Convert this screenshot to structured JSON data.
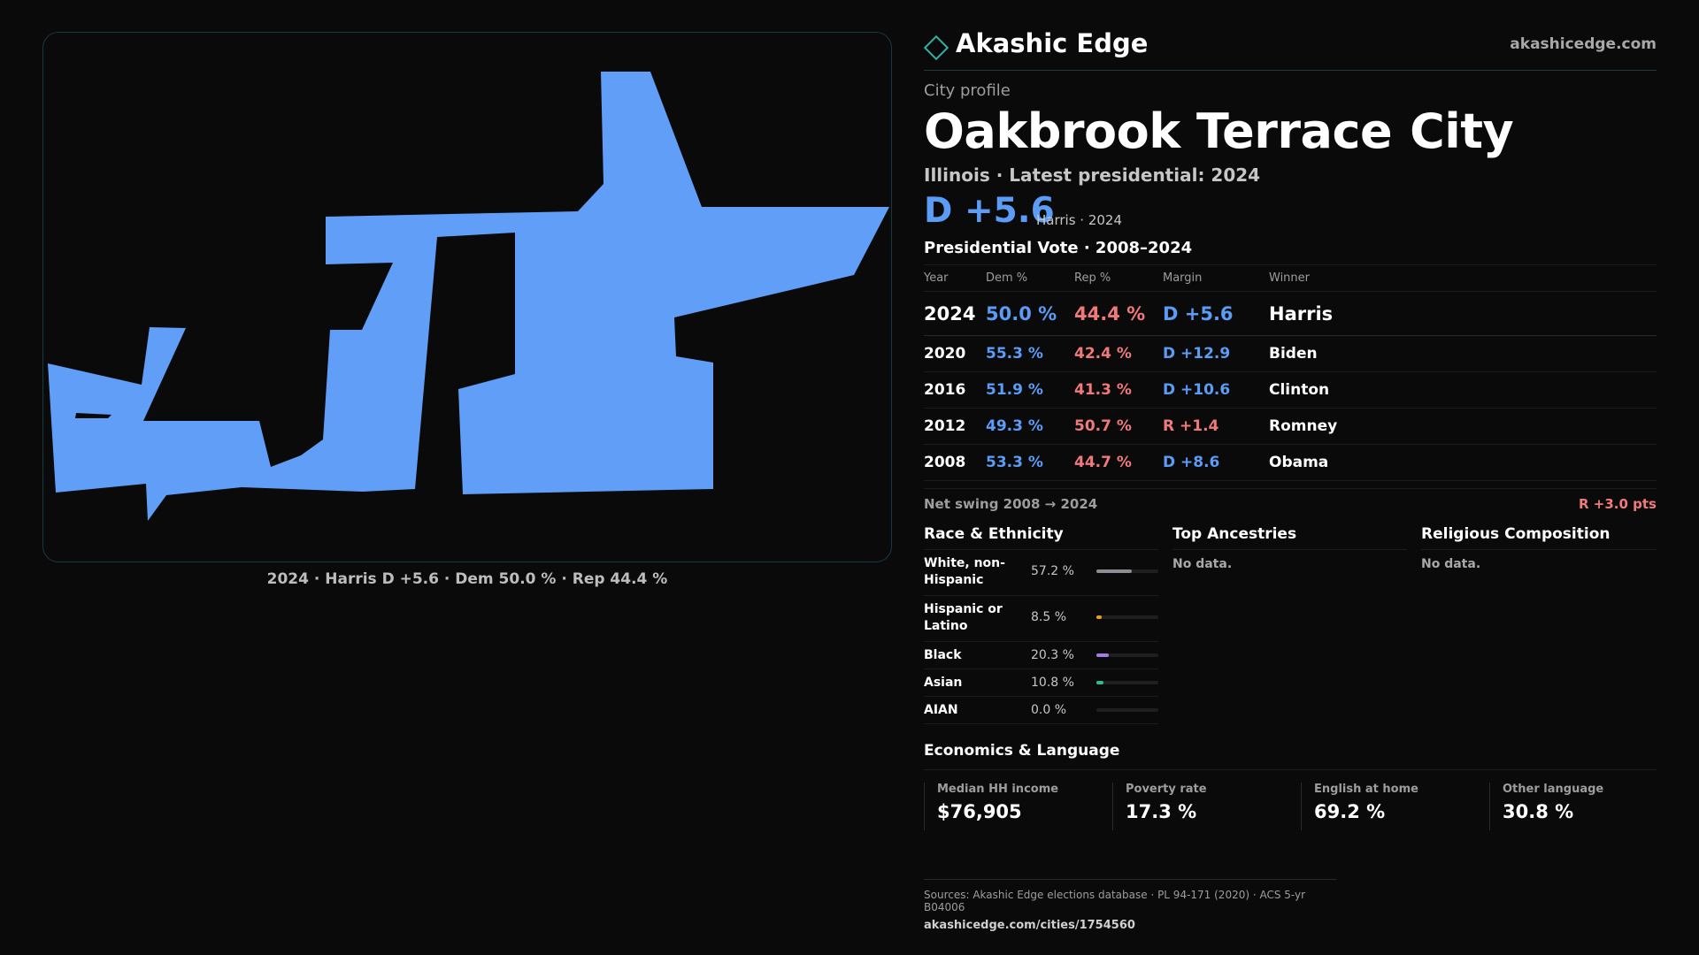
{
  "brand": {
    "name": "Akashic Edge",
    "url": "akashicedge.com"
  },
  "profile_label": "City profile",
  "city": {
    "name": "Oakbrook Terrace",
    "type": "City"
  },
  "subtitle": "Illinois · Latest presidential: 2024",
  "headline": {
    "margin": "D +5.6",
    "detail": "Harris · 2024"
  },
  "vote": {
    "title": "Presidential Vote · 2008–2024",
    "headers": {
      "year": "Year",
      "dem": "Dem %",
      "rep": "Rep %",
      "margin": "Margin",
      "winner": "Winner"
    },
    "rows": [
      {
        "year": "2024",
        "dem": "50.0 %",
        "rep": "44.4 %",
        "margin": "D +5.6",
        "winner": "Harris",
        "party": "dem"
      },
      {
        "year": "2020",
        "dem": "55.3 %",
        "rep": "42.4 %",
        "margin": "D +12.9",
        "winner": "Biden",
        "party": "dem"
      },
      {
        "year": "2016",
        "dem": "51.9 %",
        "rep": "41.3 %",
        "margin": "D +10.6",
        "winner": "Clinton",
        "party": "dem"
      },
      {
        "year": "2012",
        "dem": "49.3 %",
        "rep": "50.7 %",
        "margin": "R +1.4",
        "winner": "Romney",
        "party": "rep"
      },
      {
        "year": "2008",
        "dem": "53.3 %",
        "rep": "44.7 %",
        "margin": "D +8.6",
        "winner": "Obama",
        "party": "dem"
      }
    ]
  },
  "swing": {
    "label": "Net swing 2008 → 2024",
    "value": "R +3.0 pts"
  },
  "race": {
    "title": "Race & Ethnicity",
    "items": [
      {
        "name": "White, non-Hispanic",
        "value": "57.2 %",
        "fraction": 0.572,
        "color": "#8d8d93"
      },
      {
        "name": "Hispanic or Latino",
        "value": "8.5 %",
        "fraction": 0.085,
        "color": "#e3a21a"
      },
      {
        "name": "Black",
        "value": "20.3 %",
        "fraction": 0.203,
        "color": "#a47de8"
      },
      {
        "name": "Asian",
        "value": "10.8 %",
        "fraction": 0.108,
        "color": "#2fbf8f"
      },
      {
        "name": "AIAN",
        "value": "0.0 %",
        "fraction": 0.0,
        "color": "#8d8d93"
      }
    ]
  },
  "ancestries": {
    "title": "Top Ancestries",
    "empty": "No data."
  },
  "religion": {
    "title": "Religious Composition",
    "empty": "No data."
  },
  "economics": {
    "title": "Economics & Language",
    "cells": [
      {
        "label": "Median HH income",
        "value": "$76,905"
      },
      {
        "label": "Poverty rate",
        "value": "17.3 %"
      },
      {
        "label": "English at home",
        "value": "69.2 %"
      },
      {
        "label": "Other language",
        "value": "30.8 %"
      }
    ]
  },
  "map": {
    "caption": "2024 · Harris D +5.6 · Dem 50.0 % · Rep 44.4 %",
    "fill_color": "#619ef7"
  },
  "sources": {
    "line": "Sources: Akashic Edge elections database · PL 94-171 (2020) · ACS 5-yr B04006",
    "url": "akashicedge.com/cities/1754560"
  }
}
